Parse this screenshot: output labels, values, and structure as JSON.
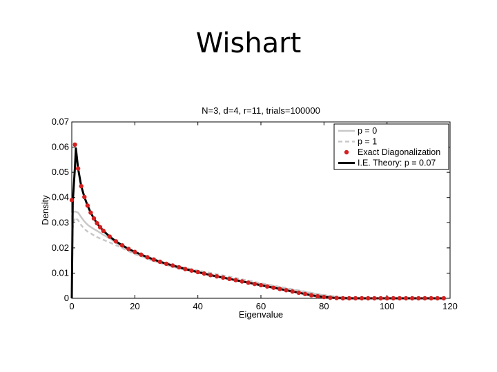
{
  "slide": {
    "title": "Wishart"
  },
  "chart_data": {
    "type": "line",
    "title": "N=3, d=4, r=11, trials=100000",
    "xlabel": "Eigenvalue",
    "ylabel": "Density",
    "xlim": [
      0,
      120
    ],
    "ylim": [
      0,
      0.07
    ],
    "xticks": [
      "0",
      "20",
      "40",
      "60",
      "80",
      "100",
      "120"
    ],
    "yticks": [
      "0",
      "0.01",
      "0.02",
      "0.03",
      "0.04",
      "0.05",
      "0.06",
      "0.07"
    ],
    "grid": false,
    "legend_position": "top-right",
    "series": [
      {
        "name": "p = 0",
        "style": "solid",
        "color": "#c8c8c8",
        "x": [
          0,
          0.3,
          1,
          2,
          3,
          4,
          5,
          6,
          7,
          8,
          10,
          12,
          15,
          20,
          25,
          30,
          35,
          40,
          45,
          50,
          55,
          60,
          65,
          70,
          75,
          80,
          85,
          90,
          100,
          110,
          118
        ],
        "y": [
          0.033,
          0.034,
          0.0345,
          0.034,
          0.0322,
          0.0305,
          0.0292,
          0.0283,
          0.0275,
          0.0268,
          0.0252,
          0.0238,
          0.0212,
          0.0178,
          0.0152,
          0.0132,
          0.0116,
          0.0102,
          0.009,
          0.0078,
          0.0067,
          0.0055,
          0.0045,
          0.0034,
          0.0023,
          0.0012,
          0.0004,
          0.0,
          0.0,
          0.0,
          0.0
        ]
      },
      {
        "name": "p = 1",
        "style": "dashed",
        "color": "#c8c8c8",
        "x": [
          0,
          0.3,
          1,
          2,
          3,
          4,
          5,
          6,
          7,
          8,
          10,
          12,
          15,
          20,
          25,
          30,
          35,
          40,
          45,
          50,
          55,
          60,
          65,
          70,
          75,
          80,
          85,
          90,
          100,
          110,
          118
        ],
        "y": [
          0.0,
          0.028,
          0.032,
          0.031,
          0.029,
          0.0275,
          0.0265,
          0.0258,
          0.025,
          0.0243,
          0.0232,
          0.0222,
          0.0205,
          0.0175,
          0.0155,
          0.0138,
          0.0123,
          0.011,
          0.0098,
          0.0086,
          0.0073,
          0.006,
          0.0048,
          0.0036,
          0.0024,
          0.0013,
          0.0005,
          0.0,
          0.0,
          0.0,
          0.0
        ]
      },
      {
        "name": "Exact Diagonalization",
        "style": "markers",
        "color": "#d42020",
        "x": [
          0,
          1,
          2,
          3,
          4,
          5,
          6,
          7,
          8,
          9,
          10,
          12,
          14,
          16,
          18,
          20,
          22,
          24,
          26,
          28,
          30,
          32,
          34,
          36,
          38,
          40,
          42,
          44,
          46,
          48,
          50,
          52,
          54,
          56,
          58,
          60,
          62,
          64,
          66,
          68,
          70,
          72,
          74,
          76,
          78,
          80,
          82,
          84,
          86,
          88,
          90,
          92,
          94,
          96,
          98,
          100,
          102,
          104,
          106,
          108,
          110,
          112,
          114,
          116,
          118
        ],
        "y": [
          0.039,
          0.061,
          0.0515,
          0.0445,
          0.0402,
          0.0368,
          0.034,
          0.0317,
          0.0298,
          0.0282,
          0.0268,
          0.0245,
          0.0226,
          0.021,
          0.0196,
          0.0184,
          0.0173,
          0.0163,
          0.0154,
          0.0145,
          0.0137,
          0.013,
          0.0123,
          0.0116,
          0.011,
          0.0104,
          0.0098,
          0.0092,
          0.0087,
          0.0082,
          0.0077,
          0.0072,
          0.0067,
          0.0062,
          0.0057,
          0.0052,
          0.0047,
          0.0042,
          0.0037,
          0.0032,
          0.0027,
          0.0022,
          0.0017,
          0.0012,
          0.0008,
          0.0005,
          0.0002,
          0.0001,
          0.0,
          0.0,
          0.0,
          0.0,
          0.0,
          0.0,
          0.0,
          0.0,
          0.0,
          0.0,
          0.0,
          0.0,
          0.0,
          0.0,
          0.0,
          0.0,
          0.0
        ]
      },
      {
        "name": "I.E. Theory: p = 0.07",
        "style": "solid-thick",
        "color": "#000000",
        "x": [
          0,
          0.3,
          1,
          1.3,
          2,
          3,
          4,
          5,
          6,
          7,
          8,
          9,
          10,
          12,
          14,
          16,
          18,
          20,
          24,
          28,
          32,
          36,
          40,
          44,
          48,
          52,
          56,
          60,
          64,
          68,
          72,
          76,
          80,
          84,
          88,
          100,
          118
        ],
        "y": [
          0.0,
          0.038,
          0.052,
          0.0595,
          0.0515,
          0.0445,
          0.0402,
          0.0368,
          0.034,
          0.0317,
          0.0298,
          0.0282,
          0.0268,
          0.0245,
          0.0226,
          0.021,
          0.0196,
          0.0184,
          0.0163,
          0.0145,
          0.013,
          0.0116,
          0.0104,
          0.0092,
          0.0082,
          0.0072,
          0.0062,
          0.0052,
          0.0042,
          0.0032,
          0.0022,
          0.0012,
          0.0005,
          0.0001,
          0.0,
          0.0,
          0.0
        ]
      }
    ]
  }
}
